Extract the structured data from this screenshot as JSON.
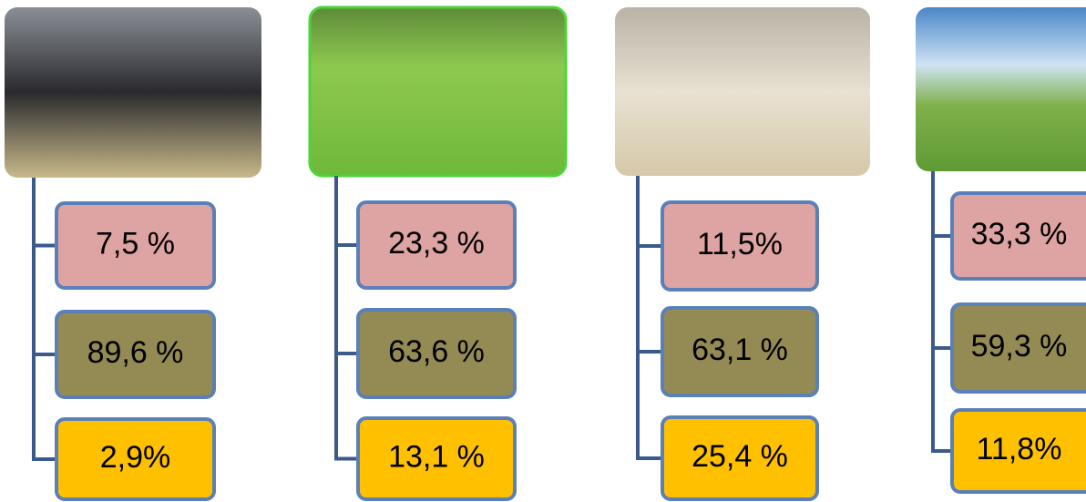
{
  "columns": [
    {
      "items": [
        "7,5 %",
        "89,6 %",
        "2,9%"
      ]
    },
    {
      "items": [
        "23,3 %",
        "63,6 %",
        "13,1 %"
      ]
    },
    {
      "items": [
        "11,5%",
        "63,1 %",
        "25,4 %"
      ]
    },
    {
      "items": [
        "33,3 %",
        "59,3 %",
        "11,8%"
      ]
    }
  ]
}
